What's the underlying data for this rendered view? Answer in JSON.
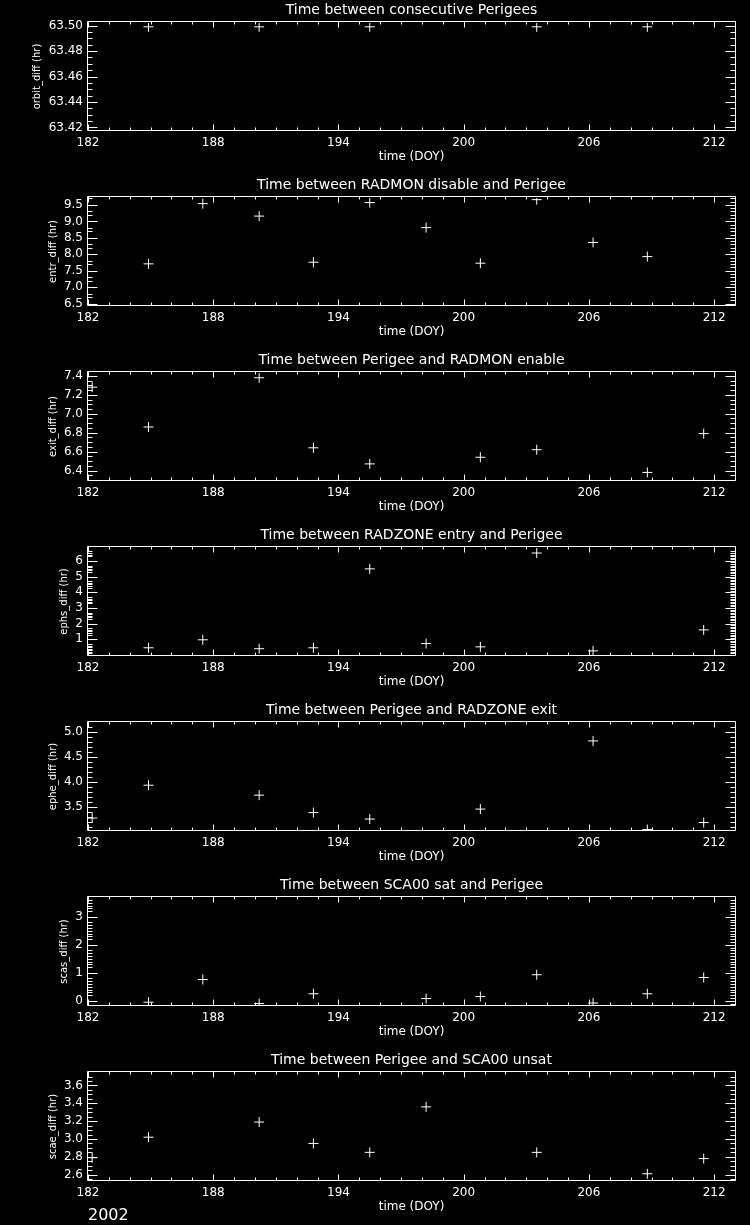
{
  "chart_data": [
    {
      "type": "scatter",
      "title": "Time between consecutive Perigees",
      "xlabel": "time (DOY)",
      "ylabel": "orbit_diff (hr)",
      "marker": "cross",
      "color": "#ffffff",
      "xlim": [
        182,
        213
      ],
      "ylim": [
        63.418,
        63.502
      ],
      "xticks": [
        182,
        {
          "value": 183,
          "label": null
        },
        {
          "value": 184,
          "label": null
        },
        {
          "value": 185,
          "label": null
        },
        {
          "value": 186,
          "label": null
        },
        {
          "value": 187,
          "label": null
        },
        188,
        {
          "value": 189,
          "label": null
        },
        {
          "value": 190,
          "label": null
        },
        {
          "value": 191,
          "label": null
        },
        {
          "value": 192,
          "label": null
        },
        {
          "value": 193,
          "label": null
        },
        194,
        {
          "value": 195,
          "label": null
        },
        {
          "value": 196,
          "label": null
        },
        {
          "value": 197,
          "label": null
        },
        {
          "value": 198,
          "label": null
        },
        {
          "value": 199,
          "label": null
        },
        200,
        {
          "value": 201,
          "label": null
        },
        {
          "value": 202,
          "label": null
        },
        {
          "value": 203,
          "label": null
        },
        {
          "value": 204,
          "label": null
        },
        {
          "value": 205,
          "label": null
        },
        206,
        {
          "value": 207,
          "label": null
        },
        {
          "value": 208,
          "label": null
        },
        {
          "value": 209,
          "label": null
        },
        {
          "value": 210,
          "label": null
        },
        {
          "value": 211,
          "label": null
        },
        212
      ],
      "yticks": [
        63.42,
        {
          "value": 63.425,
          "label": null
        },
        {
          "value": 63.43,
          "label": null
        },
        {
          "value": 63.435,
          "label": null
        },
        63.44,
        {
          "value": 63.445,
          "label": null
        },
        {
          "value": 63.45,
          "label": null
        },
        {
          "value": 63.455,
          "label": null
        },
        63.46,
        {
          "value": 63.465,
          "label": null
        },
        {
          "value": 63.47,
          "label": null
        },
        {
          "value": 63.475,
          "label": null
        },
        63.48,
        {
          "value": 63.485,
          "label": null
        },
        {
          "value": 63.49,
          "label": null
        },
        {
          "value": 63.495,
          "label": null
        },
        {
          "value": 63.5,
          "label": "63.50"
        }
      ],
      "x": [
        184.9,
        190.2,
        195.5,
        203.5,
        208.8
      ],
      "values": [
        63.499,
        63.499,
        63.499,
        63.499,
        63.499
      ]
    },
    {
      "type": "scatter",
      "title": "Time between RADMON disable and Perigee",
      "xlabel": "time (DOY)",
      "ylabel": "entr_diff (hr)",
      "marker": "cross",
      "color": "#ffffff",
      "xlim": [
        182,
        213
      ],
      "ylim": [
        6.46,
        9.71
      ],
      "xticks": [
        182,
        {
          "value": 183,
          "label": null
        },
        {
          "value": 184,
          "label": null
        },
        {
          "value": 185,
          "label": null
        },
        {
          "value": 186,
          "label": null
        },
        {
          "value": 187,
          "label": null
        },
        188,
        {
          "value": 189,
          "label": null
        },
        {
          "value": 190,
          "label": null
        },
        {
          "value": 191,
          "label": null
        },
        {
          "value": 192,
          "label": null
        },
        {
          "value": 193,
          "label": null
        },
        194,
        {
          "value": 195,
          "label": null
        },
        {
          "value": 196,
          "label": null
        },
        {
          "value": 197,
          "label": null
        },
        {
          "value": 198,
          "label": null
        },
        {
          "value": 199,
          "label": null
        },
        200,
        {
          "value": 201,
          "label": null
        },
        {
          "value": 202,
          "label": null
        },
        {
          "value": 203,
          "label": null
        },
        {
          "value": 204,
          "label": null
        },
        {
          "value": 205,
          "label": null
        },
        206,
        {
          "value": 207,
          "label": null
        },
        {
          "value": 208,
          "label": null
        },
        {
          "value": 209,
          "label": null
        },
        {
          "value": 210,
          "label": null
        },
        {
          "value": 211,
          "label": null
        },
        212
      ],
      "yticks": [
        6.5,
        {
          "value": 6.6,
          "label": null
        },
        {
          "value": 6.7,
          "label": null
        },
        {
          "value": 6.8,
          "label": null
        },
        {
          "value": 6.9,
          "label": null
        },
        {
          "value": 7,
          "label": "7.0"
        },
        {
          "value": 7.1,
          "label": null
        },
        {
          "value": 7.2,
          "label": null
        },
        {
          "value": 7.3,
          "label": null
        },
        {
          "value": 7.4,
          "label": null
        },
        7.5,
        {
          "value": 7.6,
          "label": null
        },
        {
          "value": 7.7,
          "label": null
        },
        {
          "value": 7.8,
          "label": null
        },
        {
          "value": 7.9,
          "label": null
        },
        {
          "value": 8,
          "label": "8.0"
        },
        {
          "value": 8.1,
          "label": null
        },
        {
          "value": 8.2,
          "label": null
        },
        {
          "value": 8.3,
          "label": null
        },
        {
          "value": 8.4,
          "label": null
        },
        8.5,
        {
          "value": 8.6,
          "label": null
        },
        {
          "value": 8.7,
          "label": null
        },
        {
          "value": 8.8,
          "label": null
        },
        {
          "value": 8.9,
          "label": null
        },
        {
          "value": 9,
          "label": "9.0"
        },
        {
          "value": 9.1,
          "label": null
        },
        {
          "value": 9.2,
          "label": null
        },
        {
          "value": 9.3,
          "label": null
        },
        {
          "value": 9.4,
          "label": null
        },
        9.5,
        {
          "value": 9.6,
          "label": null
        },
        {
          "value": 9.7,
          "label": null
        }
      ],
      "x": [
        184.9,
        187.5,
        190.2,
        192.8,
        195.5,
        198.2,
        200.8,
        203.5,
        206.2,
        208.8
      ],
      "values": [
        7.71,
        9.54,
        9.16,
        7.76,
        9.57,
        8.81,
        7.73,
        9.66,
        8.36,
        7.93
      ]
    },
    {
      "type": "scatter",
      "title": "Time between Perigee and RADMON enable",
      "xlabel": "time (DOY)",
      "ylabel": "exit_diff (hr)",
      "marker": "cross",
      "color": "#ffffff",
      "xlim": [
        182,
        213
      ],
      "ylim": [
        6.3,
        7.43
      ],
      "xticks": [
        182,
        {
          "value": 183,
          "label": null
        },
        {
          "value": 184,
          "label": null
        },
        {
          "value": 185,
          "label": null
        },
        {
          "value": 186,
          "label": null
        },
        {
          "value": 187,
          "label": null
        },
        188,
        {
          "value": 189,
          "label": null
        },
        {
          "value": 190,
          "label": null
        },
        {
          "value": 191,
          "label": null
        },
        {
          "value": 192,
          "label": null
        },
        {
          "value": 193,
          "label": null
        },
        194,
        {
          "value": 195,
          "label": null
        },
        {
          "value": 196,
          "label": null
        },
        {
          "value": 197,
          "label": null
        },
        {
          "value": 198,
          "label": null
        },
        {
          "value": 199,
          "label": null
        },
        200,
        {
          "value": 201,
          "label": null
        },
        {
          "value": 202,
          "label": null
        },
        {
          "value": 203,
          "label": null
        },
        {
          "value": 204,
          "label": null
        },
        {
          "value": 205,
          "label": null
        },
        206,
        {
          "value": 207,
          "label": null
        },
        {
          "value": 208,
          "label": null
        },
        {
          "value": 209,
          "label": null
        },
        {
          "value": 210,
          "label": null
        },
        {
          "value": 211,
          "label": null
        },
        212
      ],
      "yticks": [
        {
          "value": 6.35,
          "label": null
        },
        6.4,
        {
          "value": 6.45,
          "label": null
        },
        {
          "value": 6.5,
          "label": null
        },
        {
          "value": 6.55,
          "label": null
        },
        6.6,
        {
          "value": 6.65,
          "label": null
        },
        {
          "value": 6.7,
          "label": null
        },
        {
          "value": 6.75,
          "label": null
        },
        6.8,
        {
          "value": 6.85,
          "label": null
        },
        {
          "value": 6.9,
          "label": null
        },
        {
          "value": 6.95,
          "label": null
        },
        {
          "value": 7,
          "label": "7.0"
        },
        {
          "value": 7.05,
          "label": null
        },
        {
          "value": 7.1,
          "label": null
        },
        {
          "value": 7.15,
          "label": null
        },
        7.2,
        {
          "value": 7.25,
          "label": null
        },
        {
          "value": 7.3,
          "label": null
        },
        {
          "value": 7.35,
          "label": null
        },
        7.4
      ],
      "x": [
        182.2,
        184.9,
        190.2,
        192.8,
        195.5,
        200.8,
        203.5,
        208.8,
        211.5
      ],
      "values": [
        7.28,
        6.86,
        7.38,
        6.64,
        6.47,
        6.54,
        6.62,
        6.38,
        6.79
      ]
    },
    {
      "type": "scatter",
      "title": "Time between RADZONE entry and Perigee",
      "xlabel": "time (DOY)",
      "ylabel": "ephs_diff (hr)",
      "marker": "cross",
      "color": "#ffffff",
      "xlim": [
        182,
        213
      ],
      "ylim": [
        0,
        6.82
      ],
      "xticks": [
        182,
        {
          "value": 183,
          "label": null
        },
        {
          "value": 184,
          "label": null
        },
        {
          "value": 185,
          "label": null
        },
        {
          "value": 186,
          "label": null
        },
        {
          "value": 187,
          "label": null
        },
        188,
        {
          "value": 189,
          "label": null
        },
        {
          "value": 190,
          "label": null
        },
        {
          "value": 191,
          "label": null
        },
        {
          "value": 192,
          "label": null
        },
        {
          "value": 193,
          "label": null
        },
        194,
        {
          "value": 195,
          "label": null
        },
        {
          "value": 196,
          "label": null
        },
        {
          "value": 197,
          "label": null
        },
        {
          "value": 198,
          "label": null
        },
        {
          "value": 199,
          "label": null
        },
        200,
        {
          "value": 201,
          "label": null
        },
        {
          "value": 202,
          "label": null
        },
        {
          "value": 203,
          "label": null
        },
        {
          "value": 204,
          "label": null
        },
        {
          "value": 205,
          "label": null
        },
        206,
        {
          "value": 207,
          "label": null
        },
        {
          "value": 208,
          "label": null
        },
        {
          "value": 209,
          "label": null
        },
        {
          "value": 210,
          "label": null
        },
        {
          "value": 211,
          "label": null
        },
        212
      ],
      "yticks": [
        {
          "value": 0.1,
          "label": null
        },
        {
          "value": 0.2,
          "label": null
        },
        {
          "value": 0.3,
          "label": null
        },
        {
          "value": 0.4,
          "label": null
        },
        {
          "value": 0.5,
          "label": null
        },
        {
          "value": 0.6,
          "label": null
        },
        {
          "value": 0.7,
          "label": null
        },
        {
          "value": 0.8,
          "label": null
        },
        {
          "value": 0.9,
          "label": null
        },
        1,
        {
          "value": 1.1,
          "label": null
        },
        {
          "value": 1.2,
          "label": null
        },
        {
          "value": 1.3,
          "label": null
        },
        {
          "value": 1.4,
          "label": null
        },
        {
          "value": 1.5,
          "label": null
        },
        {
          "value": 1.6,
          "label": null
        },
        {
          "value": 1.7,
          "label": null
        },
        {
          "value": 1.8,
          "label": null
        },
        {
          "value": 1.9,
          "label": null
        },
        2,
        {
          "value": 2.1,
          "label": null
        },
        {
          "value": 2.2,
          "label": null
        },
        {
          "value": 2.3,
          "label": null
        },
        {
          "value": 2.4,
          "label": null
        },
        {
          "value": 2.5,
          "label": null
        },
        {
          "value": 2.6,
          "label": null
        },
        {
          "value": 2.7,
          "label": null
        },
        {
          "value": 2.8,
          "label": null
        },
        {
          "value": 2.9,
          "label": null
        },
        3,
        {
          "value": 3.1,
          "label": null
        },
        {
          "value": 3.2,
          "label": null
        },
        {
          "value": 3.3,
          "label": null
        },
        {
          "value": 3.4,
          "label": null
        },
        {
          "value": 3.5,
          "label": null
        },
        {
          "value": 3.6,
          "label": null
        },
        {
          "value": 3.7,
          "label": null
        },
        {
          "value": 3.8,
          "label": null
        },
        {
          "value": 3.9,
          "label": null
        },
        4,
        {
          "value": 4.1,
          "label": null
        },
        {
          "value": 4.2,
          "label": null
        },
        {
          "value": 4.3,
          "label": null
        },
        {
          "value": 4.4,
          "label": null
        },
        {
          "value": 4.5,
          "label": null
        },
        {
          "value": 4.6,
          "label": null
        },
        {
          "value": 4.7,
          "label": null
        },
        {
          "value": 4.8,
          "label": null
        },
        {
          "value": 4.9,
          "label": null
        },
        5,
        {
          "value": 5.1,
          "label": null
        },
        {
          "value": 5.2,
          "label": null
        },
        {
          "value": 5.3,
          "label": null
        },
        {
          "value": 5.4,
          "label": null
        },
        {
          "value": 5.5,
          "label": null
        },
        {
          "value": 5.6,
          "label": null
        },
        {
          "value": 5.7,
          "label": null
        },
        {
          "value": 5.8,
          "label": null
        },
        {
          "value": 5.9,
          "label": null
        },
        6,
        {
          "value": 6.1,
          "label": null
        },
        {
          "value": 6.2,
          "label": null
        },
        {
          "value": 6.3,
          "label": null
        },
        {
          "value": 6.4,
          "label": null
        },
        {
          "value": 6.5,
          "label": null
        },
        {
          "value": 6.6,
          "label": null
        }
      ],
      "x": [
        184.9,
        187.5,
        190.2,
        192.8,
        195.5,
        198.2,
        200.8,
        203.5,
        206.2,
        211.5
      ],
      "values": [
        0.46,
        0.97,
        0.4,
        0.46,
        5.49,
        0.73,
        0.52,
        6.5,
        0.26,
        1.6
      ]
    },
    {
      "type": "scatter",
      "title": "Time between Perigee and RADZONE exit",
      "xlabel": "time (DOY)",
      "ylabel": "ephe_diff (hr)",
      "marker": "cross",
      "color": "#ffffff",
      "xlim": [
        182,
        213
      ],
      "ylim": [
        3.03,
        5.18
      ],
      "xticks": [
        182,
        {
          "value": 183,
          "label": null
        },
        {
          "value": 184,
          "label": null
        },
        {
          "value": 185,
          "label": null
        },
        {
          "value": 186,
          "label": null
        },
        {
          "value": 187,
          "label": null
        },
        188,
        {
          "value": 189,
          "label": null
        },
        {
          "value": 190,
          "label": null
        },
        {
          "value": 191,
          "label": null
        },
        {
          "value": 192,
          "label": null
        },
        {
          "value": 193,
          "label": null
        },
        194,
        {
          "value": 195,
          "label": null
        },
        {
          "value": 196,
          "label": null
        },
        {
          "value": 197,
          "label": null
        },
        {
          "value": 198,
          "label": null
        },
        {
          "value": 199,
          "label": null
        },
        200,
        {
          "value": 201,
          "label": null
        },
        {
          "value": 202,
          "label": null
        },
        {
          "value": 203,
          "label": null
        },
        {
          "value": 204,
          "label": null
        },
        {
          "value": 205,
          "label": null
        },
        206,
        {
          "value": 207,
          "label": null
        },
        {
          "value": 208,
          "label": null
        },
        {
          "value": 209,
          "label": null
        },
        {
          "value": 210,
          "label": null
        },
        {
          "value": 211,
          "label": null
        },
        212
      ],
      "yticks": [
        {
          "value": 3.1,
          "label": null
        },
        {
          "value": 3.2,
          "label": null
        },
        {
          "value": 3.3,
          "label": null
        },
        {
          "value": 3.4,
          "label": null
        },
        3.5,
        {
          "value": 3.6,
          "label": null
        },
        {
          "value": 3.7,
          "label": null
        },
        {
          "value": 3.8,
          "label": null
        },
        {
          "value": 3.9,
          "label": null
        },
        {
          "value": 4,
          "label": "4.0"
        },
        {
          "value": 4.1,
          "label": null
        },
        {
          "value": 4.2,
          "label": null
        },
        {
          "value": 4.3,
          "label": null
        },
        {
          "value": 4.4,
          "label": null
        },
        4.5,
        {
          "value": 4.6,
          "label": null
        },
        {
          "value": 4.7,
          "label": null
        },
        {
          "value": 4.8,
          "label": null
        },
        {
          "value": 4.9,
          "label": null
        },
        {
          "value": 5,
          "label": "5.0"
        },
        {
          "value": 5.1,
          "label": null
        }
      ],
      "x": [
        182.2,
        184.9,
        190.2,
        192.8,
        195.5,
        200.8,
        206.2,
        208.8,
        211.5
      ],
      "values": [
        3.27,
        3.93,
        3.73,
        3.38,
        3.25,
        3.45,
        4.82,
        3.04,
        3.18
      ]
    },
    {
      "type": "scatter",
      "title": "Time between SCA00 sat and Perigee",
      "xlabel": "time (DOY)",
      "ylabel": "scas_diff (hr)",
      "marker": "cross",
      "color": "#ffffff",
      "xlim": [
        182,
        213
      ],
      "ylim": [
        -0.15,
        3.67
      ],
      "xticks": [
        182,
        {
          "value": 183,
          "label": null
        },
        {
          "value": 184,
          "label": null
        },
        {
          "value": 185,
          "label": null
        },
        {
          "value": 186,
          "label": null
        },
        {
          "value": 187,
          "label": null
        },
        188,
        {
          "value": 189,
          "label": null
        },
        {
          "value": 190,
          "label": null
        },
        {
          "value": 191,
          "label": null
        },
        {
          "value": 192,
          "label": null
        },
        {
          "value": 193,
          "label": null
        },
        194,
        {
          "value": 195,
          "label": null
        },
        {
          "value": 196,
          "label": null
        },
        {
          "value": 197,
          "label": null
        },
        {
          "value": 198,
          "label": null
        },
        {
          "value": 199,
          "label": null
        },
        200,
        {
          "value": 201,
          "label": null
        },
        {
          "value": 202,
          "label": null
        },
        {
          "value": 203,
          "label": null
        },
        {
          "value": 204,
          "label": null
        },
        {
          "value": 205,
          "label": null
        },
        206,
        {
          "value": 207,
          "label": null
        },
        {
          "value": 208,
          "label": null
        },
        {
          "value": 209,
          "label": null
        },
        {
          "value": 210,
          "label": null
        },
        {
          "value": 211,
          "label": null
        },
        212
      ],
      "yticks": [
        {
          "value": -0.1,
          "label": null
        },
        0,
        {
          "value": 0.1,
          "label": null
        },
        {
          "value": 0.2,
          "label": null
        },
        {
          "value": 0.3,
          "label": null
        },
        {
          "value": 0.4,
          "label": null
        },
        {
          "value": 0.5,
          "label": null
        },
        {
          "value": 0.6,
          "label": null
        },
        {
          "value": 0.7,
          "label": null
        },
        {
          "value": 0.8,
          "label": null
        },
        {
          "value": 0.9,
          "label": null
        },
        1,
        {
          "value": 1.1,
          "label": null
        },
        {
          "value": 1.2,
          "label": null
        },
        {
          "value": 1.3,
          "label": null
        },
        {
          "value": 1.4,
          "label": null
        },
        {
          "value": 1.5,
          "label": null
        },
        {
          "value": 1.6,
          "label": null
        },
        {
          "value": 1.7,
          "label": null
        },
        {
          "value": 1.8,
          "label": null
        },
        {
          "value": 1.9,
          "label": null
        },
        2,
        {
          "value": 2.1,
          "label": null
        },
        {
          "value": 2.2,
          "label": null
        },
        {
          "value": 2.3,
          "label": null
        },
        {
          "value": 2.4,
          "label": null
        },
        {
          "value": 2.5,
          "label": null
        },
        {
          "value": 2.6,
          "label": null
        },
        {
          "value": 2.7,
          "label": null
        },
        {
          "value": 2.8,
          "label": null
        },
        {
          "value": 2.9,
          "label": null
        },
        3,
        {
          "value": 3.1,
          "label": null
        },
        {
          "value": 3.2,
          "label": null
        },
        {
          "value": 3.3,
          "label": null
        },
        {
          "value": 3.4,
          "label": null
        },
        {
          "value": 3.5,
          "label": null
        },
        {
          "value": 3.6,
          "label": null
        }
      ],
      "x": [
        184.9,
        187.5,
        190.2,
        192.8,
        198.2,
        200.8,
        203.5,
        206.2,
        208.8,
        211.5
      ],
      "values": [
        -0.05,
        0.76,
        -0.1,
        0.25,
        0.08,
        0.15,
        0.93,
        -0.08,
        0.25,
        0.83
      ]
    },
    {
      "type": "scatter",
      "title": "Time between Perigee and SCA00 unsat",
      "xlabel": "time (DOY)",
      "ylabel": "scae_diff (hr)",
      "marker": "cross",
      "color": "#ffffff",
      "xlim": [
        182,
        213
      ],
      "ylim": [
        2.54,
        3.74
      ],
      "xticks": [
        182,
        {
          "value": 183,
          "label": null
        },
        {
          "value": 184,
          "label": null
        },
        {
          "value": 185,
          "label": null
        },
        {
          "value": 186,
          "label": null
        },
        {
          "value": 187,
          "label": null
        },
        188,
        {
          "value": 189,
          "label": null
        },
        {
          "value": 190,
          "label": null
        },
        {
          "value": 191,
          "label": null
        },
        {
          "value": 192,
          "label": null
        },
        {
          "value": 193,
          "label": null
        },
        194,
        {
          "value": 195,
          "label": null
        },
        {
          "value": 196,
          "label": null
        },
        {
          "value": 197,
          "label": null
        },
        {
          "value": 198,
          "label": null
        },
        {
          "value": 199,
          "label": null
        },
        200,
        {
          "value": 201,
          "label": null
        },
        {
          "value": 202,
          "label": null
        },
        {
          "value": 203,
          "label": null
        },
        {
          "value": 204,
          "label": null
        },
        {
          "value": 205,
          "label": null
        },
        206,
        {
          "value": 207,
          "label": null
        },
        {
          "value": 208,
          "label": null
        },
        {
          "value": 209,
          "label": null
        },
        {
          "value": 210,
          "label": null
        },
        {
          "value": 211,
          "label": null
        },
        212
      ],
      "yticks": [
        {
          "value": 2.55,
          "label": null
        },
        2.6,
        {
          "value": 2.65,
          "label": null
        },
        {
          "value": 2.7,
          "label": null
        },
        {
          "value": 2.75,
          "label": null
        },
        2.8,
        {
          "value": 2.85,
          "label": null
        },
        {
          "value": 2.9,
          "label": null
        },
        {
          "value": 2.95,
          "label": null
        },
        {
          "value": 3,
          "label": "3.0"
        },
        {
          "value": 3.05,
          "label": null
        },
        {
          "value": 3.1,
          "label": null
        },
        {
          "value": 3.15,
          "label": null
        },
        3.2,
        {
          "value": 3.25,
          "label": null
        },
        {
          "value": 3.3,
          "label": null
        },
        {
          "value": 3.35,
          "label": null
        },
        3.4,
        {
          "value": 3.45,
          "label": null
        },
        {
          "value": 3.5,
          "label": null
        },
        {
          "value": 3.55,
          "label": null
        },
        3.6,
        {
          "value": 3.65,
          "label": null
        },
        {
          "value": 3.7,
          "label": null
        }
      ],
      "x": [
        182.2,
        184.9,
        190.2,
        192.8,
        195.5,
        198.2,
        203.5,
        208.8,
        211.5
      ],
      "values": [
        2.79,
        3.02,
        3.19,
        2.95,
        2.85,
        3.36,
        2.85,
        2.61,
        2.78
      ],
      "annotations": [
        "2002"
      ]
    }
  ]
}
